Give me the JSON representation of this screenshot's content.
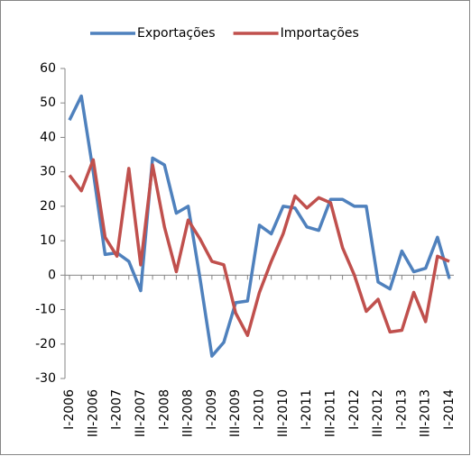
{
  "chart_data": {
    "type": "line",
    "categories": [
      "I-2006",
      null,
      "III-2006",
      null,
      "I-2007",
      null,
      "III-2007",
      null,
      "I-2008",
      null,
      "III-2008",
      null,
      "I-2009",
      null,
      "III-2009",
      null,
      "I-2010",
      null,
      "III-2010",
      null,
      "I-2011",
      null,
      "III-2011",
      null,
      "I-2012",
      null,
      "III-2012",
      null,
      "I-2013",
      null,
      "III-2013",
      null,
      "I-2014"
    ],
    "series": [
      {
        "name": "Exportações",
        "color": "#4f81bd",
        "values": [
          45,
          52,
          30,
          6,
          6.5,
          4,
          -4.5,
          34,
          32,
          18,
          20,
          -1,
          -23.5,
          -19.5,
          -8,
          -7.5,
          14.5,
          12,
          20,
          19.5,
          14,
          13,
          22,
          22,
          20,
          20,
          -2,
          -4,
          7,
          1,
          2,
          11,
          -1
        ]
      },
      {
        "name": "Importações",
        "color": "#c0504d",
        "values": [
          29,
          24.5,
          33.5,
          11,
          5.5,
          31,
          3,
          32,
          14,
          1,
          16,
          10.5,
          4,
          3,
          -11,
          -17.5,
          -5,
          4,
          12,
          23,
          19.5,
          22.5,
          21,
          8,
          0,
          -10.5,
          -7,
          -16.5,
          -16,
          -5,
          -13.5,
          5.5,
          4
        ]
      }
    ],
    "ylim": [
      -30,
      60
    ],
    "yticks": [
      -30,
      -20,
      -10,
      0,
      10,
      20,
      30,
      40,
      50,
      60
    ],
    "legend": "top"
  }
}
